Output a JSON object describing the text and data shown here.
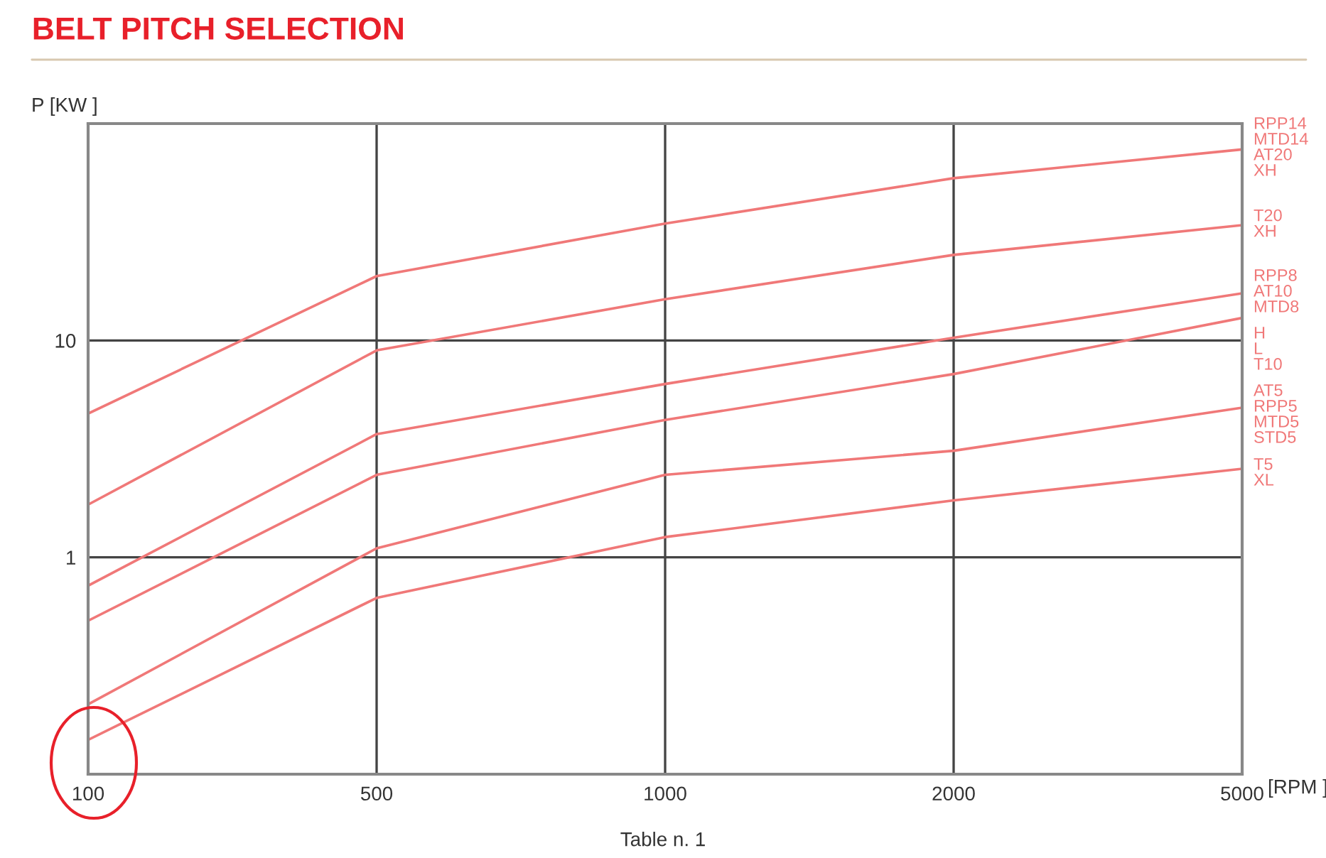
{
  "chart_data": {
    "type": "line",
    "title": "BELT PITCH SELECTION",
    "ylabel": "P [KW ]",
    "xlabel": "[RPM ]",
    "categories": [
      "100",
      "500",
      "1000",
      "2000",
      "5000"
    ],
    "log": "y",
    "ylim": [
      0.1,
      100
    ],
    "yticks": [
      1,
      10
    ],
    "grid": true,
    "legend": false,
    "marker": "none",
    "line_style": "solid",
    "series": [
      {
        "name": "RPP14\nMTD14\nAT20\nXH",
        "color": "#f07878",
        "values": [
          4.6,
          19.8,
          34.6,
          56,
          76
        ]
      },
      {
        "name": "T20\nXH",
        "color": "#f07878",
        "values": [
          1.75,
          9.0,
          15.5,
          24.8,
          34
        ]
      },
      {
        "name": "RPP8\nAT10\nMTD8",
        "color": "#f07878",
        "values": [
          0.74,
          3.7,
          6.3,
          10.3,
          16.5
        ]
      },
      {
        "name": "H\nL\nT10",
        "color": "#f07878",
        "values": [
          0.51,
          2.4,
          4.3,
          7.0,
          12.7
        ]
      },
      {
        "name": "AT5\nRPP5\nMTD5\nSTD5",
        "color": "#f07878",
        "values": [
          0.21,
          1.1,
          2.4,
          3.1,
          4.9
        ]
      },
      {
        "name": "T5\nXL",
        "color": "#f07878",
        "values": [
          0.144,
          0.65,
          1.24,
          1.83,
          2.56
        ]
      }
    ],
    "annotations": [
      "Table n. 1"
    ]
  }
}
